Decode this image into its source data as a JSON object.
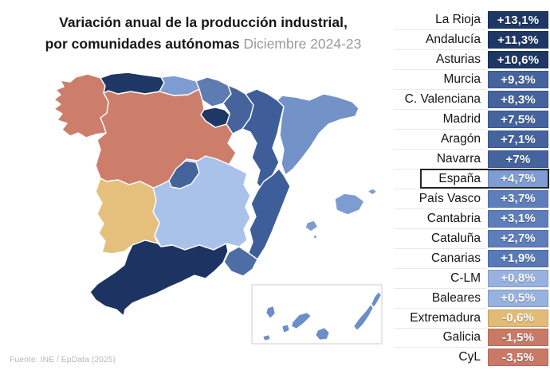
{
  "title": {
    "line1": "Variación anual de la producción industrial,",
    "line2": "por comunidades autónomas",
    "period": "Diciembre 2024-23"
  },
  "source": "Fuente: INE / EpData (2025)",
  "chart_data": {
    "type": "choropleth",
    "title": "Variación anual de la producción industrial, por comunidades autónomas",
    "subtitle": "Diciembre 2024-23",
    "unit": "percent, annual variation",
    "legend_position": "right-ranked-list",
    "rows": [
      {
        "label": "La Rioja",
        "value": 13.1,
        "display": "+13,1%",
        "color": "#1e3765"
      },
      {
        "label": "Andalucía",
        "value": 11.3,
        "display": "+11,3%",
        "color": "#1e3765"
      },
      {
        "label": "Asturias",
        "value": 10.6,
        "display": "+10,6%",
        "color": "#1e3765"
      },
      {
        "label": "Murcia",
        "value": 9.3,
        "display": "+9,3%",
        "color": "#45639d"
      },
      {
        "label": "C. Valenciana",
        "value": 8.3,
        "display": "+8,3%",
        "color": "#45639d"
      },
      {
        "label": "Madrid",
        "value": 7.5,
        "display": "+7,5%",
        "color": "#45639d"
      },
      {
        "label": "Aragón",
        "value": 7.1,
        "display": "+7,1%",
        "color": "#45639d"
      },
      {
        "label": "Navarra",
        "value": 7.0,
        "display": "+7%",
        "color": "#45639d"
      },
      {
        "label": "España",
        "value": 4.7,
        "display": "+4,7%",
        "color": "#7e9dd4",
        "highlight": true
      },
      {
        "label": "País Vasco",
        "value": 3.7,
        "display": "+3,7%",
        "color": "#5d7eba"
      },
      {
        "label": "Cantabria",
        "value": 3.1,
        "display": "+3,1%",
        "color": "#5d7eba"
      },
      {
        "label": "Cataluña",
        "value": 2.7,
        "display": "+2,7%",
        "color": "#5d7eba"
      },
      {
        "label": "Canarias",
        "value": 1.9,
        "display": "+1,9%",
        "color": "#587ab6"
      },
      {
        "label": "C-LM",
        "value": 0.8,
        "display": "+0,8%",
        "color": "#97b2df"
      },
      {
        "label": "Baleares",
        "value": 0.5,
        "display": "+0,5%",
        "color": "#97b2df"
      },
      {
        "label": "Extremadura",
        "value": -0.6,
        "display": "-0,6%",
        "color": "#e2bc77"
      },
      {
        "label": "Galicia",
        "value": -1.5,
        "display": "-1,5%",
        "color": "#c87a67"
      },
      {
        "label": "CyL",
        "value": -3.5,
        "display": "-3,5%",
        "color": "#c87a67"
      }
    ],
    "map_region_colors": {
      "galicia": "#cd7e6b",
      "asturias": "#1e3765",
      "cantabria": "#7e9cd1",
      "pais_vasco": "#5e7cb2",
      "navarra": "#46639b",
      "la_rioja": "#1e3765",
      "aragon": "#3f5e99",
      "cataluna": "#7292c8",
      "castilla_y_leon": "#cd7e6b",
      "madrid": "#45639b",
      "castilla_la_mancha": "#a9c2e9",
      "extremadura": "#e4c07c",
      "c_valenciana": "#3e5e99",
      "murcia": "#4f6da5",
      "andalucia": "#1d3462",
      "baleares": "#7e9cd1",
      "canarias": "#6b8ec9"
    },
    "source": "Fuente: INE / EpData (2025)"
  }
}
